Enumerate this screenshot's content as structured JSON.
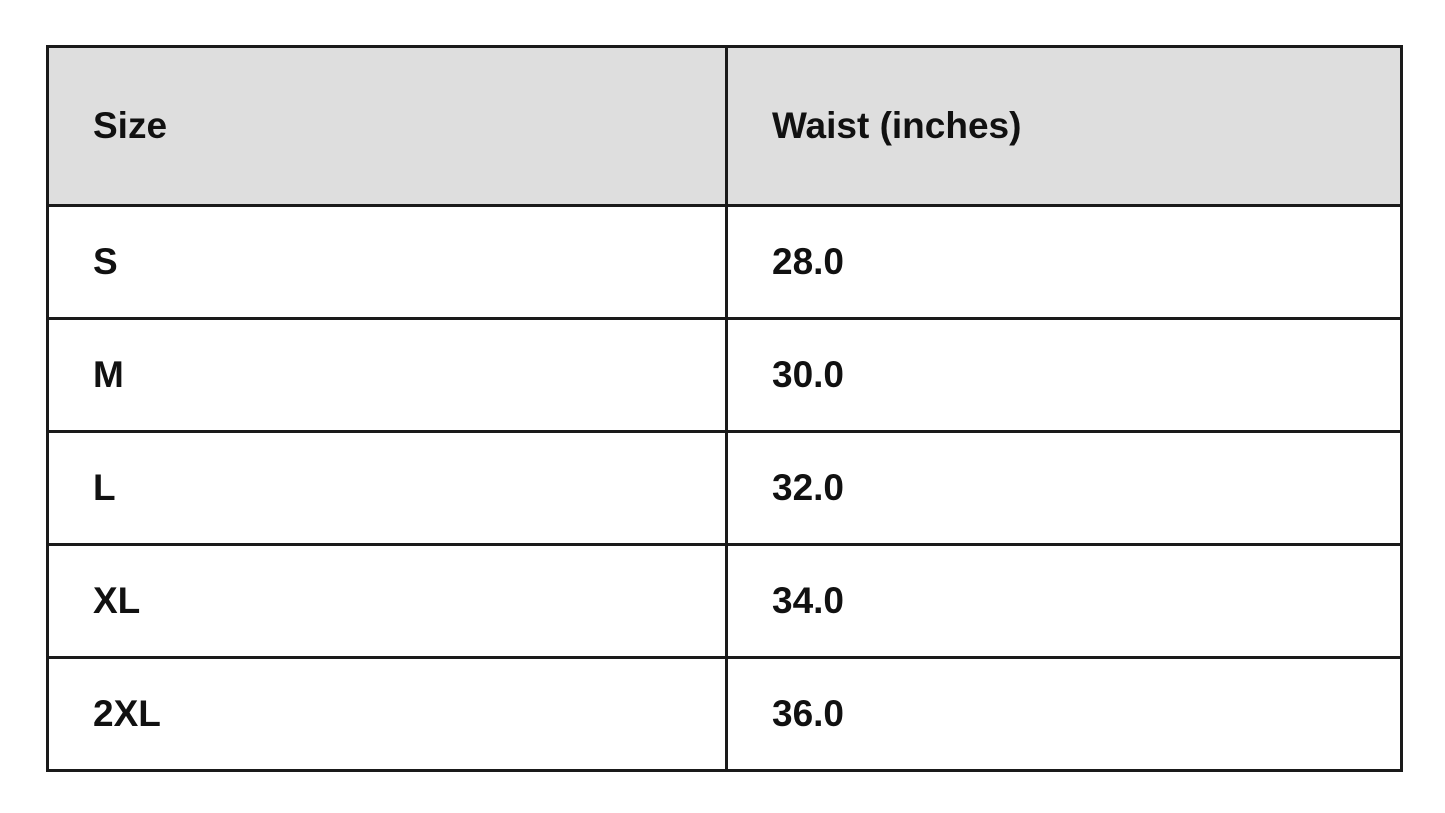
{
  "table": {
    "headers": [
      "Size",
      "Waist (inches)"
    ],
    "rows": [
      [
        "S",
        "28.0"
      ],
      [
        "M",
        "30.0"
      ],
      [
        "L",
        "32.0"
      ],
      [
        "XL",
        "34.0"
      ],
      [
        "2XL",
        "36.0"
      ]
    ]
  },
  "colors": {
    "header_background": "#dedede",
    "border": "#1a1a1a"
  }
}
